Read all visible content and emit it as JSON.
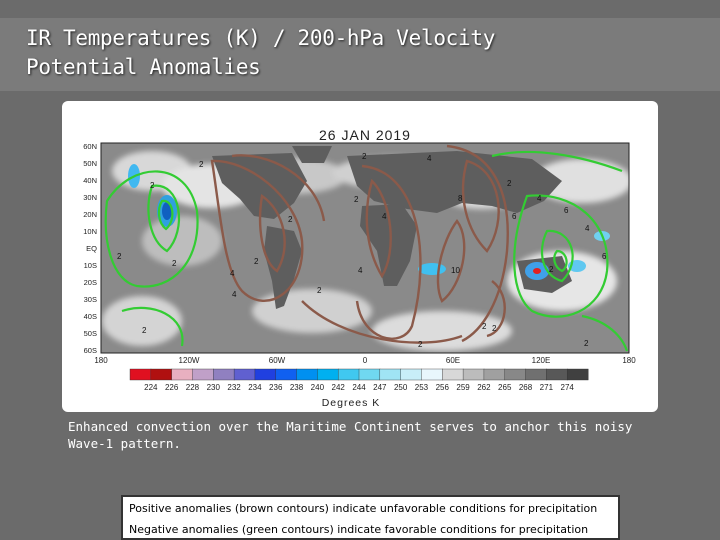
{
  "slide": {
    "title_line1": "IR Temperatures (K) / 200-hPa Velocity",
    "title_line2": "Potential Anomalies",
    "caption": "Enhanced convection over the Maritime Continent serves to anchor this noisy Wave-1 pattern.",
    "legend_positive": "Positive anomalies (brown contours) indicate unfavorable conditions for precipitation",
    "legend_negative": "Negative anomalies (green contours) indicate favorable conditions for precipitation"
  },
  "map": {
    "date": "26 JAN 2019",
    "lat_labels": [
      "60N",
      "50N",
      "40N",
      "30N",
      "20N",
      "10N",
      "EQ",
      "10S",
      "20S",
      "30S",
      "40S",
      "50S",
      "60S"
    ],
    "lon_labels": [
      "180",
      "120W",
      "60W",
      "0",
      "60E",
      "120E",
      "180"
    ],
    "colorbar_title": "Degrees K",
    "colorbar_ticks": [
      "224",
      "226",
      "228",
      "230",
      "232",
      "234",
      "236",
      "238",
      "240",
      "242",
      "244",
      "247",
      "250",
      "253",
      "256",
      "259",
      "262",
      "265",
      "268",
      "271",
      "274"
    ],
    "colorbar_colors": [
      "#e01020",
      "#b01010",
      "#e8b0c0",
      "#c0a0c8",
      "#9080c0",
      "#6060d0",
      "#2040e0",
      "#1060f0",
      "#0090f0",
      "#00b0f0",
      "#40c8f0",
      "#70d8f0",
      "#a0e4f4",
      "#c8eef8",
      "#e8f6fc",
      "#d8d8d8",
      "#bcbcbc",
      "#a0a0a0",
      "#888888",
      "#707070",
      "#585858",
      "#404040"
    ],
    "positive_color": "#8b5a4a",
    "negative_color": "#33cc33",
    "contour_labels": [
      "2",
      "2",
      "2",
      "4",
      "4",
      "2",
      "8",
      "10",
      "2",
      "6",
      "6",
      "4",
      "2",
      "2",
      "4",
      "4",
      "2",
      "2",
      "2",
      "2",
      "2",
      "2",
      "4",
      "2",
      "6",
      "2",
      "4",
      "2"
    ]
  }
}
